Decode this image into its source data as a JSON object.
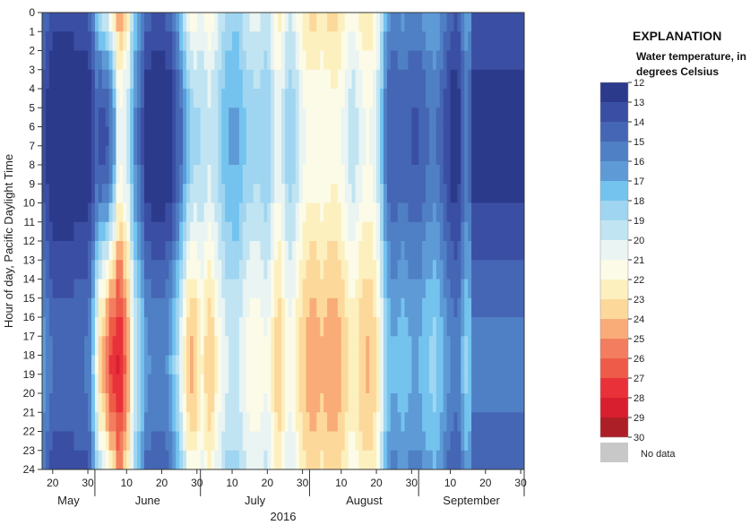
{
  "chart_data": {
    "type": "heatmap",
    "title": "",
    "ylabel": "Hour of day, Pacific Daylight Time",
    "xlabel": "2016",
    "x_start": "2016-05-17",
    "x_end": "2016-09-30",
    "x_tick_labels": [
      "20",
      "30",
      "10",
      "20",
      "30",
      "10",
      "20",
      "30",
      "10",
      "20",
      "30",
      "10",
      "20",
      "30"
    ],
    "month_labels": [
      "May",
      "June",
      "July",
      "August",
      "September"
    ],
    "y_ticks": [
      0,
      1,
      2,
      3,
      4,
      5,
      6,
      7,
      8,
      9,
      10,
      11,
      12,
      13,
      14,
      15,
      16,
      17,
      18,
      19,
      20,
      21,
      22,
      23,
      24
    ],
    "y_range": [
      0,
      24
    ],
    "legend": {
      "title": "EXPLANATION",
      "subtitle_line1": "Water temperature, in",
      "subtitle_line2": "degrees Celsius",
      "levels": [
        12,
        13,
        14,
        15,
        16,
        17,
        18,
        19,
        20,
        21,
        22,
        23,
        24,
        25,
        26,
        27,
        28,
        29,
        30
      ],
      "colors": [
        "#2c3a8c",
        "#3a4fa3",
        "#4566b4",
        "#4f7fc4",
        "#5e9bd6",
        "#74c3ef",
        "#9fd5f0",
        "#c1e4f2",
        "#e9f4f3",
        "#fbfbe8",
        "#fdf0bf",
        "#fcd99b",
        "#f9ac78",
        "#f37d5f",
        "#ee5b48",
        "#e9313a",
        "#d81f30",
        "#ad1f27"
      ],
      "nodata_label": "No data",
      "nodata_color": "#c8c8c8"
    },
    "daily_base_temp_degC": [
      14.8,
      14.2,
      13.6,
      13.2,
      13.1,
      13.1,
      13.0,
      13.1,
      13.2,
      13.4,
      13.4,
      13.4,
      13.6,
      14.0,
      15.5,
      17.5,
      18.5,
      19.0,
      19.8,
      21.0,
      22.0,
      24.0,
      24.2,
      23.0,
      22.0,
      19.5,
      17.8,
      16.8,
      15.8,
      14.4,
      14.0,
      13.8,
      13.8,
      13.6,
      13.7,
      14.0,
      14.5,
      15.5,
      16.5,
      17.8,
      19.2,
      20.5,
      21.2,
      21.3,
      20.8,
      20.5,
      21.2,
      21.8,
      21.4,
      20.6,
      19.8,
      19.2,
      18.6,
      18.4,
      18.3,
      18.3,
      18.8,
      19.4,
      19.8,
      20.0,
      20.2,
      20.2,
      19.8,
      19.6,
      19.8,
      20.8,
      21.8,
      22.0,
      21.2,
      20.2,
      19.8,
      20.2,
      21.0,
      21.8,
      22.4,
      22.8,
      23.0,
      23.0,
      22.8,
      22.6,
      22.8,
      23.0,
      23.2,
      23.2,
      22.8,
      22.3,
      21.8,
      21.2,
      21.0,
      21.4,
      22.0,
      22.4,
      22.6,
      22.4,
      21.8,
      20.8,
      19.2,
      17.2,
      16.0,
      15.6,
      15.6,
      15.8,
      16.0,
      15.8,
      15.6,
      15.4,
      15.4,
      15.6,
      16.0,
      16.4,
      16.6,
      16.8,
      16.4,
      15.8,
      15.2,
      14.6,
      14.0,
      13.8,
      14.2,
      15.6,
      16.6,
      16.0,
      13.9,
      13.8
    ],
    "daily_swing_degC": [
      1.5,
      1.5,
      1.5,
      1.5,
      1.5,
      1.5,
      1.5,
      1.5,
      1.5,
      1.5,
      1.5,
      1.5,
      1.5,
      1.5,
      2.5,
      3.5,
      5.0,
      5.5,
      6.0,
      6.0,
      5.5,
      4.0,
      3.5,
      3.0,
      2.5,
      2.0,
      2.0,
      2.0,
      2.0,
      2.0,
      2.0,
      2.0,
      2.0,
      2.0,
      2.0,
      2.0,
      2.5,
      2.5,
      2.5,
      3.0,
      3.0,
      3.0,
      3.0,
      2.5,
      2.0,
      1.5,
      2.0,
      2.0,
      2.0,
      1.5,
      1.5,
      1.5,
      1.5,
      1.5,
      1.5,
      1.5,
      1.5,
      1.5,
      1.5,
      1.5,
      1.5,
      1.5,
      1.5,
      1.5,
      1.5,
      1.5,
      1.5,
      1.5,
      1.5,
      1.5,
      1.5,
      1.5,
      1.5,
      1.5,
      1.5,
      1.5,
      1.5,
      1.5,
      1.5,
      1.5,
      1.5,
      1.5,
      1.5,
      1.5,
      1.5,
      1.5,
      1.5,
      1.5,
      1.5,
      1.5,
      1.5,
      1.5,
      1.5,
      1.5,
      1.5,
      1.5,
      1.5,
      1.5,
      1.5,
      1.5,
      1.5,
      1.5,
      1.5,
      1.5,
      1.5,
      1.5,
      1.5,
      1.5,
      1.5,
      1.5,
      1.5,
      1.5,
      1.5,
      1.5,
      1.5,
      1.5,
      1.5,
      1.5,
      1.5,
      1.5,
      1.5,
      1.5
    ]
  }
}
